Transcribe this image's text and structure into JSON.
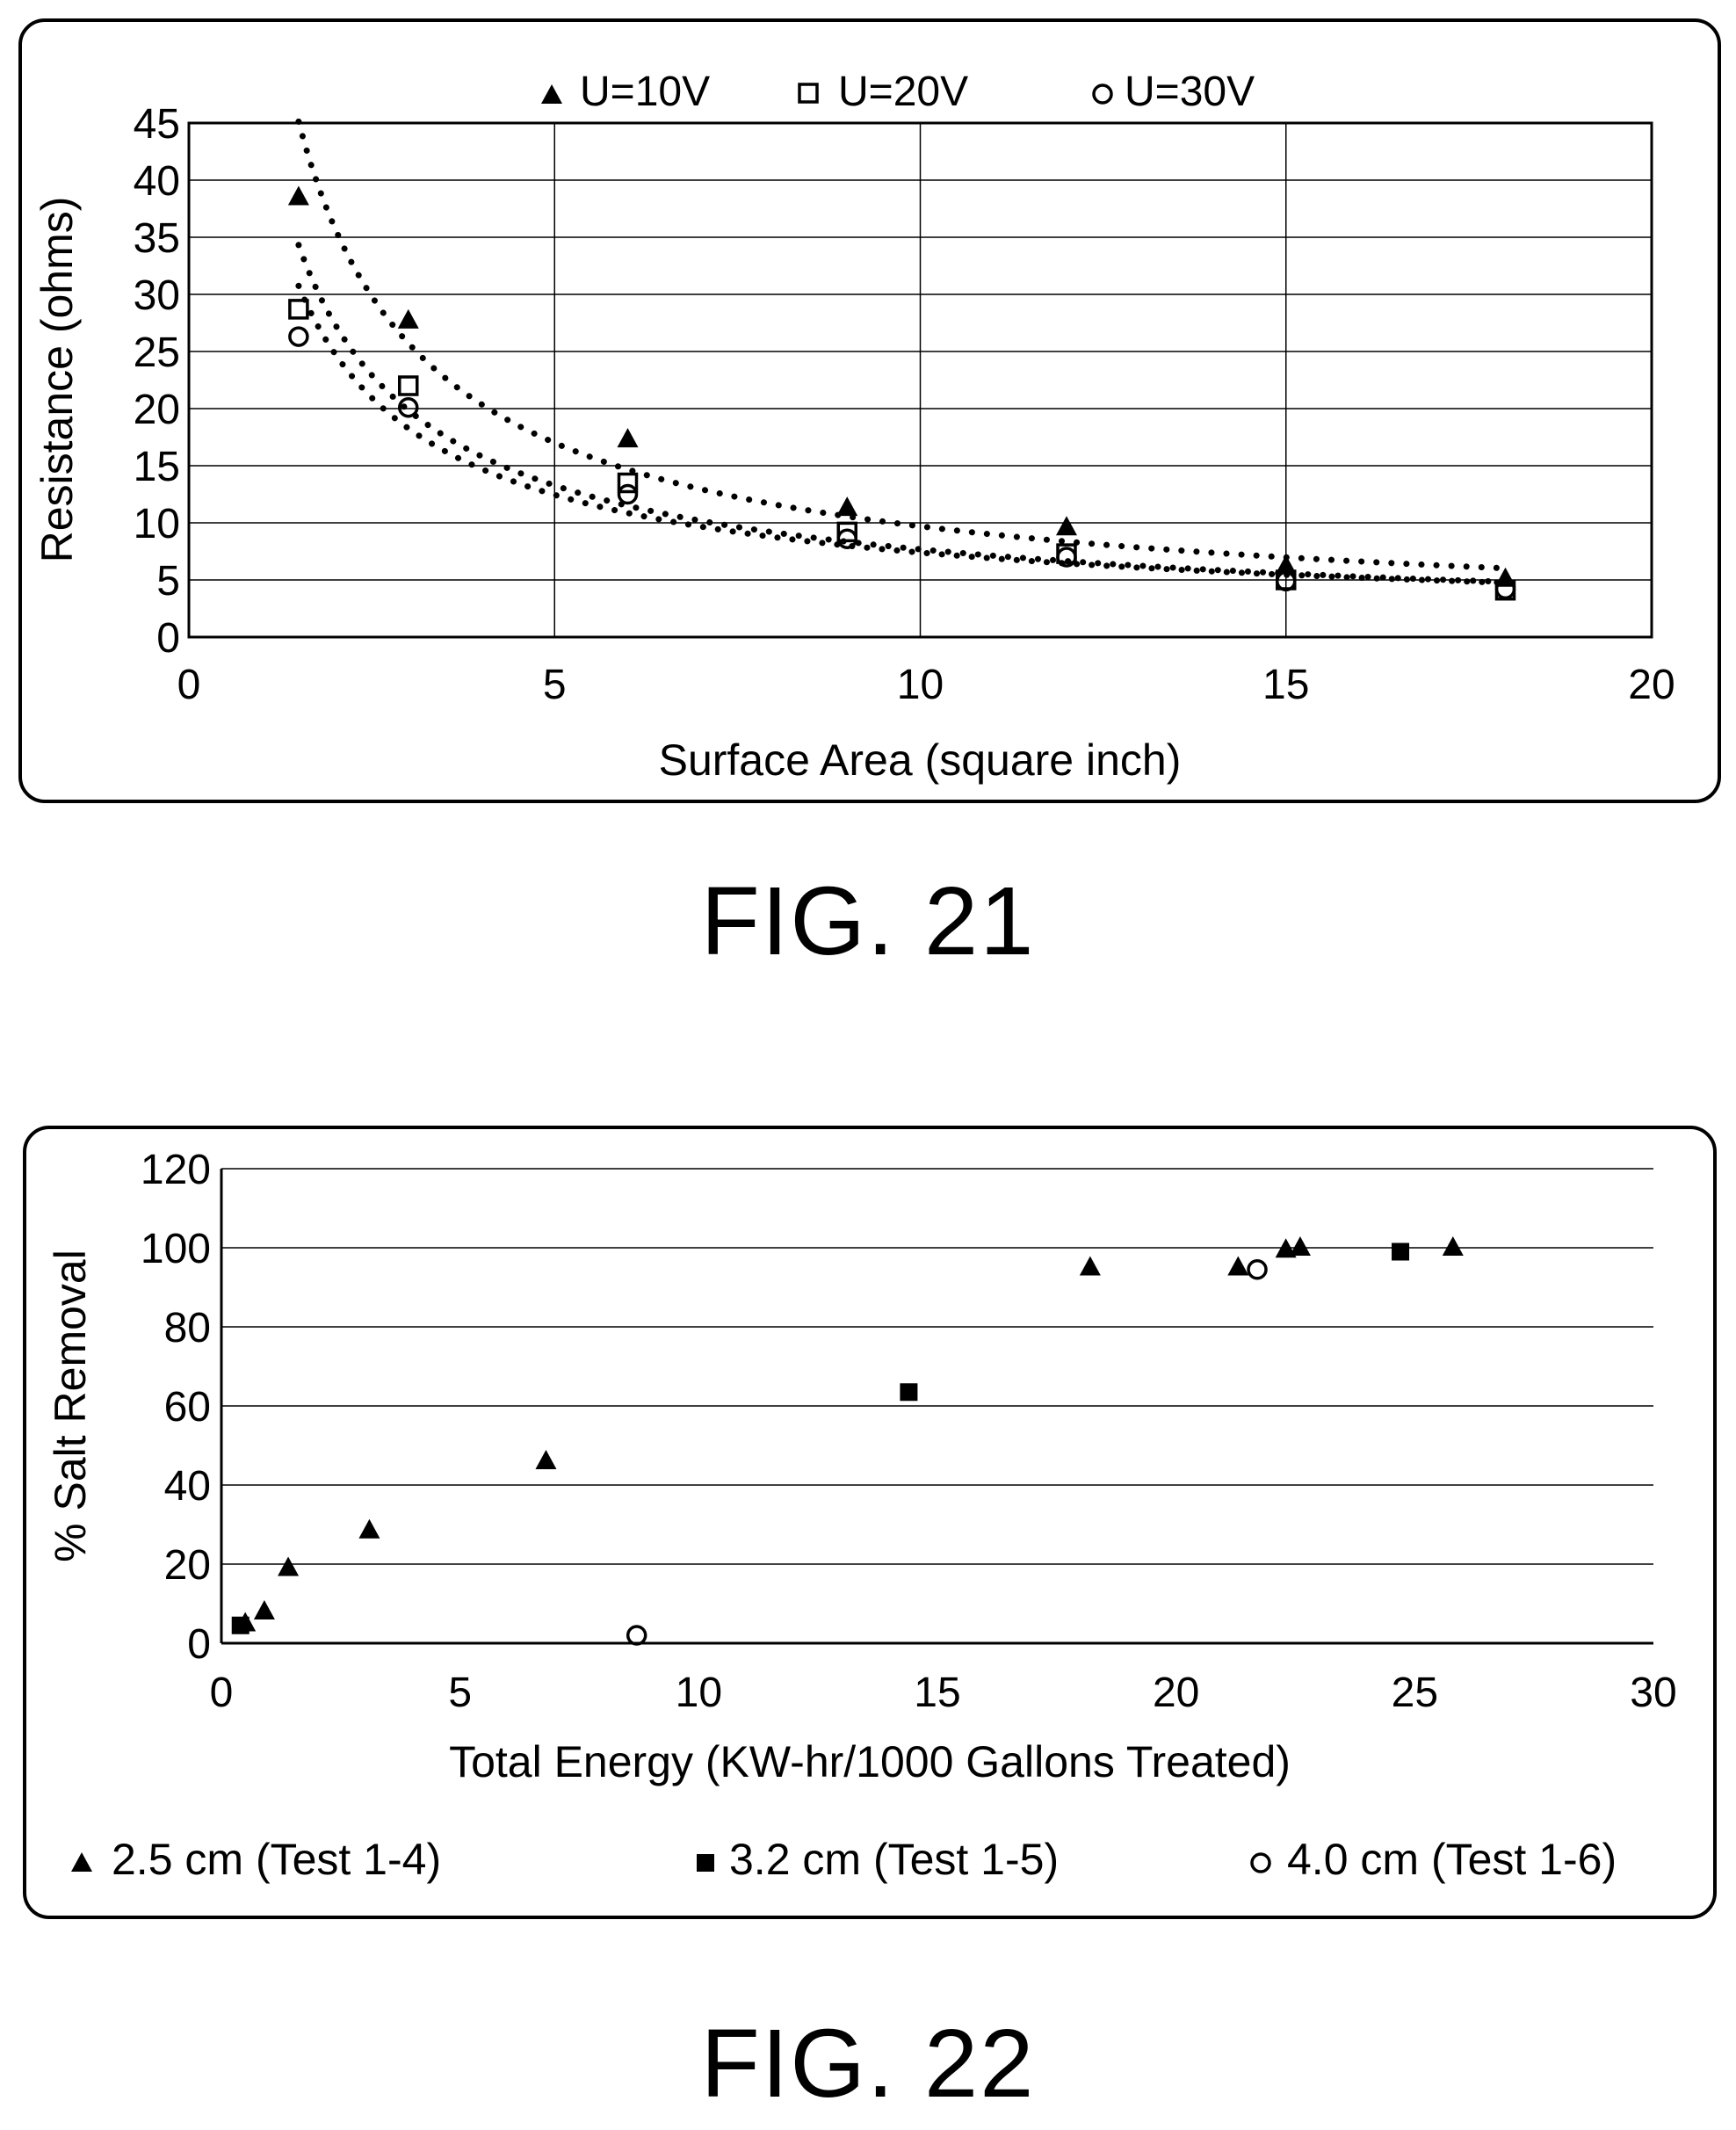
{
  "figures": {
    "fig21_caption": "FIG. 21",
    "fig22_caption": "FIG. 22"
  },
  "chart_data": [
    {
      "type": "scatter",
      "trendline": "dotted power fit per series",
      "xlabel": "Surface Area (square inch)",
      "ylabel": "Resistance (ohms)",
      "xlim": [
        0,
        20
      ],
      "ylim": [
        0,
        45
      ],
      "x_ticks": [
        "0",
        "5",
        "10",
        "15",
        "20"
      ],
      "y_ticks": [
        "0",
        "5",
        "10",
        "15",
        "20",
        "25",
        "30",
        "35",
        "40",
        "45"
      ],
      "grid": "vertical and horizontal major gridlines",
      "legend_position": "top-center",
      "series": [
        {
          "name": "U=10V",
          "marker": "filled-triangle",
          "x": [
            1.5,
            3,
            6,
            9,
            12,
            15,
            18
          ],
          "y": [
            38.5,
            27.7,
            17.3,
            11.3,
            9.6,
            6.2,
            5.1
          ]
        },
        {
          "name": "U=20V",
          "marker": "open-square",
          "x": [
            1.5,
            3,
            6,
            9,
            12,
            15,
            18
          ],
          "y": [
            28.7,
            22.0,
            13.5,
            9.2,
            7.3,
            5.0,
            4.1
          ]
        },
        {
          "name": "U=30V",
          "marker": "open-circle",
          "x": [
            1.5,
            3,
            6,
            9,
            12,
            15,
            18
          ],
          "y": [
            26.3,
            20.1,
            12.5,
            8.6,
            7.0,
            4.9,
            4.2
          ]
        }
      ]
    },
    {
      "type": "scatter",
      "xlabel": "Total Energy (KW-hr/1000 Gallons Treated)",
      "ylabel": "% Salt Removal",
      "xlim": [
        0,
        30
      ],
      "ylim": [
        0,
        120
      ],
      "x_ticks": [
        "0",
        "5",
        "10",
        "15",
        "20",
        "25",
        "30"
      ],
      "y_ticks": [
        "0",
        "20",
        "40",
        "60",
        "80",
        "100",
        "120"
      ],
      "grid": "horizontal major gridlines",
      "legend_position": "bottom",
      "series": [
        {
          "name": "2.5 cm (Test 1-4)",
          "marker": "filled-triangle",
          "x": [
            0.5,
            0.9,
            1.4,
            3.1,
            6.8,
            18.2,
            21.3,
            22.3,
            22.6,
            25.8
          ],
          "y": [
            5,
            8,
            19,
            28.5,
            46,
            95,
            95,
            99.5,
            100,
            100
          ]
        },
        {
          "name": "3.2 cm (Test 1-5)",
          "marker": "filled-square",
          "x": [
            0.4,
            14.4,
            24.7
          ],
          "y": [
            4.5,
            63.5,
            99
          ]
        },
        {
          "name": "4.0 cm (Test 1-6)",
          "marker": "open-circle",
          "x": [
            8.7,
            21.7
          ],
          "y": [
            2,
            94.5
          ]
        }
      ]
    }
  ]
}
